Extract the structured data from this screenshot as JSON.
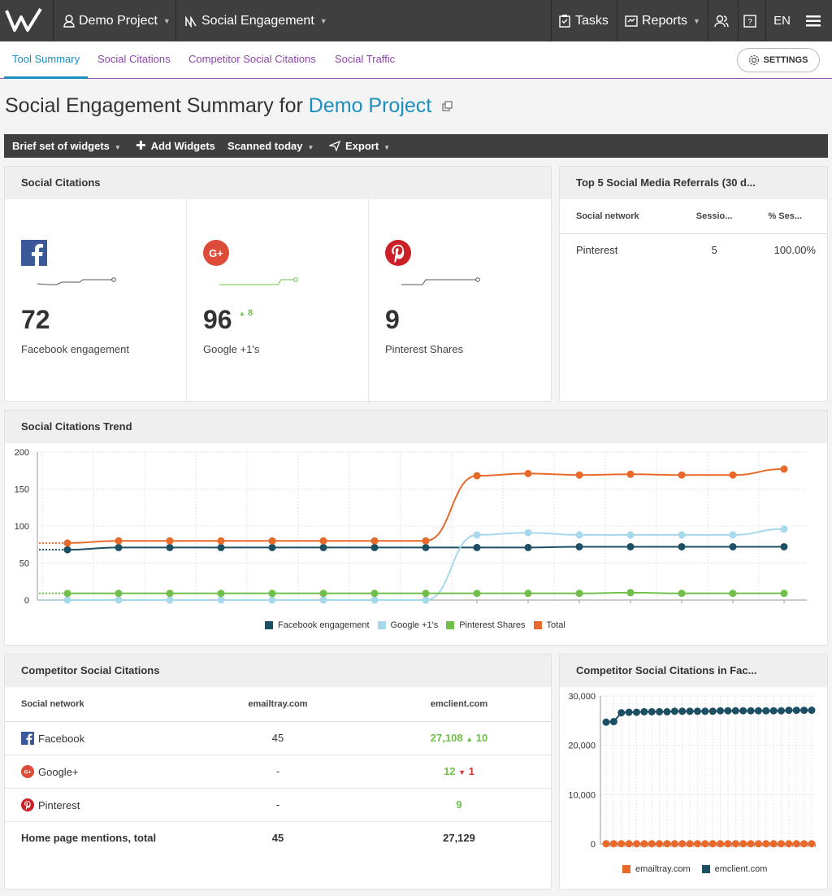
{
  "topbar": {
    "project": "Demo Project",
    "module": "Social Engagement",
    "tasks": "Tasks",
    "reports": "Reports",
    "lang": "EN"
  },
  "subnav": {
    "tabs": [
      "Tool Summary",
      "Social Citations",
      "Competitor Social Citations",
      "Social Traffic"
    ],
    "settings": "SETTINGS"
  },
  "page": {
    "title_prefix": "Social Engagement Summary for",
    "title_project": "Demo Project"
  },
  "toolbar": {
    "widgets": "Brief set of widgets",
    "add": "Add Widgets",
    "scanned": "Scanned today",
    "export": "Export"
  },
  "social_citations": {
    "title": "Social Citations",
    "items": [
      {
        "value": "72",
        "label": "Facebook engagement",
        "delta": ""
      },
      {
        "value": "96",
        "label": "Google +1's",
        "delta": "8"
      },
      {
        "value": "9",
        "label": "Pinterest Shares",
        "delta": ""
      }
    ]
  },
  "referrals": {
    "title": "Top 5 Social Media Referrals (30 d...",
    "headers": [
      "Social network",
      "Sessio...",
      "% Ses..."
    ],
    "rows": [
      {
        "network": "Pinterest",
        "sessions": "5",
        "pct": "100.00%"
      }
    ]
  },
  "trend": {
    "title": "Social Citations Trend",
    "legend": [
      "Facebook engagement",
      "Google +1's",
      "Pinterest Shares",
      "Total"
    ]
  },
  "competitor": {
    "title": "Competitor Social Citations",
    "headers": [
      "Social network",
      "emailtray.com",
      "emclient.com"
    ],
    "rows": [
      {
        "network": "Facebook",
        "a": "45",
        "b": "27,108",
        "delta": "10",
        "dir": "up"
      },
      {
        "network": "Google+",
        "a": "-",
        "b": "12",
        "delta": "1",
        "dir": "down"
      },
      {
        "network": "Pinterest",
        "a": "-",
        "b": "9",
        "delta": "",
        "dir": ""
      }
    ],
    "total": {
      "label": "Home page mentions, total",
      "a": "45",
      "b": "27,129"
    }
  },
  "competitor_fb": {
    "title": "Competitor Social Citations in Fac...",
    "legend": [
      "emailtray.com",
      "emclient.com"
    ]
  },
  "colors": {
    "facebook": "#1c4f63",
    "google": "#a8d8ec",
    "pinterest": "#6fbf4a",
    "total": "#e8692a"
  },
  "chart_data": [
    {
      "type": "line",
      "title": "Social Citations Trend",
      "ylim": [
        0,
        200
      ],
      "yticks": [
        0,
        50,
        100,
        150,
        200
      ],
      "series": [
        {
          "name": "Facebook engagement",
          "values": [
            68,
            71,
            71,
            71,
            71,
            71,
            71,
            71,
            71,
            71,
            72,
            72,
            72,
            72,
            72
          ]
        },
        {
          "name": "Google +1's",
          "values": [
            0,
            0,
            0,
            0,
            0,
            0,
            0,
            0,
            88,
            91,
            88,
            88,
            88,
            88,
            96
          ]
        },
        {
          "name": "Pinterest Shares",
          "values": [
            9,
            9,
            9,
            9,
            9,
            9,
            9,
            9,
            9,
            9,
            9,
            10,
            9,
            9,
            9
          ]
        },
        {
          "name": "Total",
          "values": [
            77,
            80,
            80,
            80,
            80,
            80,
            80,
            80,
            168,
            171,
            169,
            170,
            169,
            169,
            177
          ]
        }
      ]
    },
    {
      "type": "line",
      "title": "Competitor Social Citations in Fac...",
      "ylim": [
        0,
        30000
      ],
      "yticks": [
        0,
        10000,
        20000,
        30000
      ],
      "ytick_labels": [
        "0",
        "10,000",
        "20,000",
        "30,000"
      ],
      "series": [
        {
          "name": "emailtray.com",
          "values": [
            45,
            45,
            45,
            45,
            45,
            45,
            45,
            45,
            45,
            45,
            45,
            45,
            45,
            45,
            45,
            45,
            45,
            45,
            45,
            45,
            45,
            45,
            45,
            45,
            45,
            45,
            45,
            45
          ]
        },
        {
          "name": "emclient.com",
          "values": [
            24700,
            24800,
            26600,
            26700,
            26700,
            26800,
            26800,
            26800,
            26800,
            26900,
            26900,
            26900,
            26900,
            26900,
            26900,
            27000,
            27000,
            27000,
            27000,
            27000,
            27000,
            27000,
            27000,
            27000,
            27100,
            27100,
            27100,
            27108
          ]
        }
      ]
    }
  ]
}
